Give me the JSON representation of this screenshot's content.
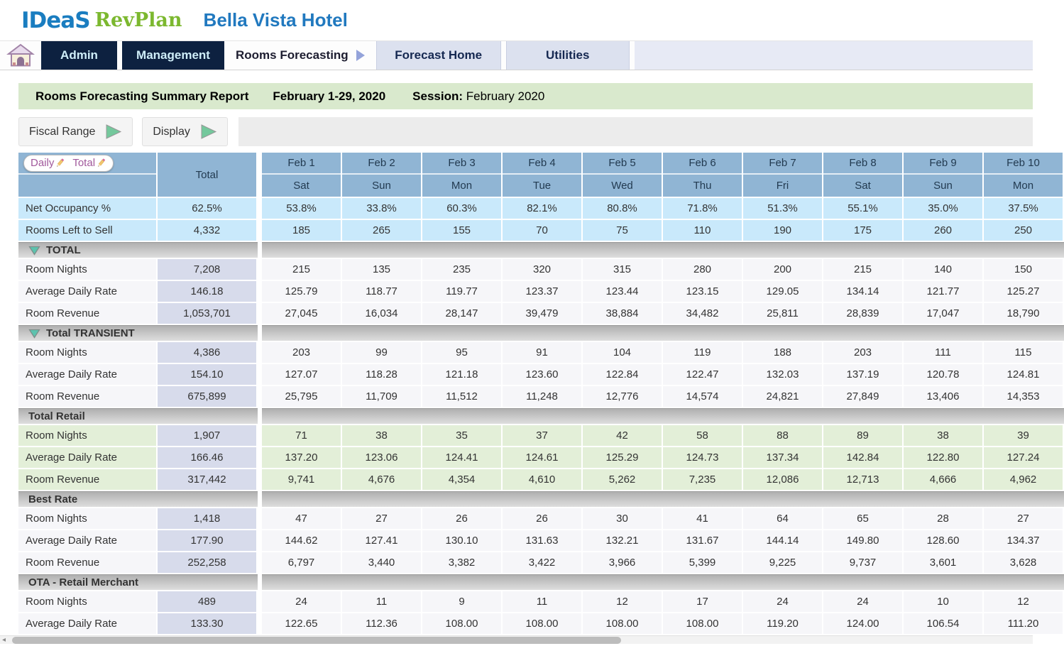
{
  "colors": {
    "brand_blue": "#1a7dc0",
    "brand_green": "#7cb82f",
    "nav_dark": "#0d2140",
    "header_blue": "#90b5d4",
    "row_cyan": "#c9e9fb",
    "row_green": "#e3efd8",
    "total_lavender": "#d7dbeb",
    "banner_green": "#d9e9cd",
    "toggle_purple": "#a1599c"
  },
  "header": {
    "logo_ideas": "IDeaS",
    "logo_revplan": "RevPlan",
    "hotel_name": "Bella Vista Hotel"
  },
  "nav": {
    "admin": "Admin",
    "management": "Management",
    "rooms_forecasting": "Rooms Forecasting",
    "forecast_home": "Forecast Home",
    "utilities": "Utilities"
  },
  "banner": {
    "title": "Rooms Forecasting Summary Report",
    "date_range": "February 1-29, 2020",
    "session_label": "Session:",
    "session_value": "February 2020"
  },
  "toolbar": {
    "fiscal_range": "Fiscal Range",
    "display": "Display"
  },
  "table": {
    "corner_daily": "Daily",
    "corner_total": "Total",
    "total_column_header": "Total",
    "columns": [
      {
        "date": "Feb 1",
        "day": "Sat"
      },
      {
        "date": "Feb 2",
        "day": "Sun"
      },
      {
        "date": "Feb 3",
        "day": "Mon"
      },
      {
        "date": "Feb 4",
        "day": "Tue"
      },
      {
        "date": "Feb 5",
        "day": "Wed"
      },
      {
        "date": "Feb 6",
        "day": "Thu"
      },
      {
        "date": "Feb 7",
        "day": "Fri"
      },
      {
        "date": "Feb 8",
        "day": "Sat"
      },
      {
        "date": "Feb 9",
        "day": "Sun"
      },
      {
        "date": "Feb 10",
        "day": "Mon"
      }
    ],
    "top_rows": [
      {
        "label": "Net Occupancy %",
        "total": "62.5%",
        "values": [
          "53.8%",
          "33.8%",
          "60.3%",
          "82.1%",
          "80.8%",
          "71.8%",
          "51.3%",
          "55.1%",
          "35.0%",
          "37.5%"
        ]
      },
      {
        "label": "Rooms Left to Sell",
        "total": "4,332",
        "values": [
          "185",
          "265",
          "155",
          "70",
          "75",
          "110",
          "190",
          "175",
          "260",
          "250"
        ]
      }
    ],
    "sections": [
      {
        "title": "TOTAL",
        "collapse_icon": true,
        "tint": "plain",
        "rows": [
          {
            "label": "Room Nights",
            "total": "7,208",
            "values": [
              "215",
              "135",
              "235",
              "320",
              "315",
              "280",
              "200",
              "215",
              "140",
              "150"
            ]
          },
          {
            "label": "Average Daily Rate",
            "total": "146.18",
            "values": [
              "125.79",
              "118.77",
              "119.77",
              "123.37",
              "123.44",
              "123.15",
              "129.05",
              "134.14",
              "121.77",
              "125.27"
            ]
          },
          {
            "label": "Room Revenue",
            "total": "1,053,701",
            "values": [
              "27,045",
              "16,034",
              "28,147",
              "39,479",
              "38,884",
              "34,482",
              "25,811",
              "28,839",
              "17,047",
              "18,790"
            ]
          }
        ]
      },
      {
        "title": "Total TRANSIENT",
        "collapse_icon": true,
        "tint": "plain",
        "rows": [
          {
            "label": "Room Nights",
            "total": "4,386",
            "values": [
              "203",
              "99",
              "95",
              "91",
              "104",
              "119",
              "188",
              "203",
              "111",
              "115"
            ]
          },
          {
            "label": "Average Daily Rate",
            "total": "154.10",
            "values": [
              "127.07",
              "118.28",
              "121.18",
              "123.60",
              "122.84",
              "122.47",
              "132.03",
              "137.19",
              "120.78",
              "124.81"
            ]
          },
          {
            "label": "Room Revenue",
            "total": "675,899",
            "values": [
              "25,795",
              "11,709",
              "11,512",
              "11,248",
              "12,776",
              "14,574",
              "24,821",
              "27,849",
              "13,406",
              "14,353"
            ]
          }
        ]
      },
      {
        "title": "Total Retail",
        "collapse_icon": false,
        "tint": "green",
        "rows": [
          {
            "label": "Room Nights",
            "total": "1,907",
            "values": [
              "71",
              "38",
              "35",
              "37",
              "42",
              "58",
              "88",
              "89",
              "38",
              "39"
            ]
          },
          {
            "label": "Average Daily Rate",
            "total": "166.46",
            "values": [
              "137.20",
              "123.06",
              "124.41",
              "124.61",
              "125.29",
              "124.73",
              "137.34",
              "142.84",
              "122.80",
              "127.24"
            ]
          },
          {
            "label": "Room Revenue",
            "total": "317,442",
            "values": [
              "9,741",
              "4,676",
              "4,354",
              "4,610",
              "5,262",
              "7,235",
              "12,086",
              "12,713",
              "4,666",
              "4,962"
            ]
          }
        ]
      },
      {
        "title": "Best Rate",
        "collapse_icon": false,
        "tint": "plain",
        "rows": [
          {
            "label": "Room Nights",
            "total": "1,418",
            "values": [
              "47",
              "27",
              "26",
              "26",
              "30",
              "41",
              "64",
              "65",
              "28",
              "27"
            ]
          },
          {
            "label": "Average Daily Rate",
            "total": "177.90",
            "values": [
              "144.62",
              "127.41",
              "130.10",
              "131.63",
              "132.21",
              "131.67",
              "144.14",
              "149.80",
              "128.60",
              "134.37"
            ]
          },
          {
            "label": "Room Revenue",
            "total": "252,258",
            "values": [
              "6,797",
              "3,440",
              "3,382",
              "3,422",
              "3,966",
              "5,399",
              "9,225",
              "9,737",
              "3,601",
              "3,628"
            ]
          }
        ]
      },
      {
        "title": "OTA - Retail Merchant",
        "collapse_icon": false,
        "tint": "plain",
        "rows": [
          {
            "label": "Room Nights",
            "total": "489",
            "values": [
              "24",
              "11",
              "9",
              "11",
              "12",
              "17",
              "24",
              "24",
              "10",
              "12"
            ]
          },
          {
            "label": "Average Daily Rate",
            "total": "133.30",
            "values": [
              "122.65",
              "112.36",
              "108.00",
              "108.00",
              "108.00",
              "108.00",
              "119.20",
              "124.00",
              "106.54",
              "111.20"
            ]
          }
        ]
      }
    ]
  }
}
